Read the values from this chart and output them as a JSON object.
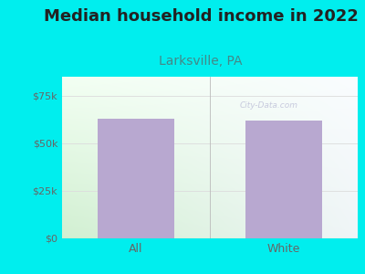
{
  "title": "Median household income in 2022",
  "subtitle": "Larksville, PA",
  "categories": [
    "All",
    "White"
  ],
  "values": [
    63000,
    62000
  ],
  "bar_color": "#b8a8d0",
  "background_outer": "#00eeee",
  "title_color": "#222222",
  "subtitle_color": "#448888",
  "title_fontsize": 13,
  "subtitle_fontsize": 10,
  "yticks": [
    0,
    25000,
    50000,
    75000
  ],
  "ytick_labels": [
    "$0",
    "$25k",
    "$50k",
    "$75k"
  ],
  "ylim": [
    0,
    85000
  ],
  "tick_color": "#666666",
  "grid_color": "#dddddd",
  "watermark": "City-Data.com",
  "bar_width": 0.52
}
